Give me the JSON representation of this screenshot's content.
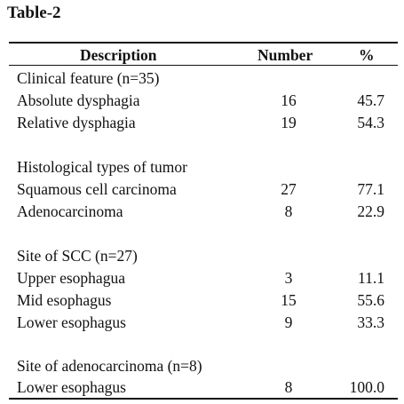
{
  "title": "Table-2",
  "headers": {
    "description": "Description",
    "number": "Number",
    "percent": "%"
  },
  "rows": [
    {
      "description": "Clinical feature (n=35)",
      "number": "",
      "percent": ""
    },
    {
      "description": "Absolute dysphagia",
      "number": "16",
      "percent": "45.7"
    },
    {
      "description": "Relative dysphagia",
      "number": "19",
      "percent": "54.3"
    },
    {
      "description": "",
      "number": "",
      "percent": ""
    },
    {
      "description": "Histological types of tumor",
      "number": "",
      "percent": ""
    },
    {
      "description": "Squamous cell carcinoma",
      "number": "27",
      "percent": "77.1"
    },
    {
      "description": "Adenocarcinoma",
      "number": "8",
      "percent": "22.9"
    },
    {
      "description": "",
      "number": "",
      "percent": ""
    },
    {
      "description": "Site of SCC (n=27)",
      "number": "",
      "percent": ""
    },
    {
      "description": "Upper esophagua",
      "number": "3",
      "percent": "11.1"
    },
    {
      "description": "Mid esophagus",
      "number": "15",
      "percent": "55.6"
    },
    {
      "description": "Lower esophagus",
      "number": "9",
      "percent": "33.3"
    },
    {
      "description": "",
      "number": "",
      "percent": ""
    },
    {
      "description": "Site of adenocarcinoma (n=8)",
      "number": "",
      "percent": ""
    },
    {
      "description": "Lower esophagus",
      "number": "8",
      "percent": "100.0"
    }
  ]
}
